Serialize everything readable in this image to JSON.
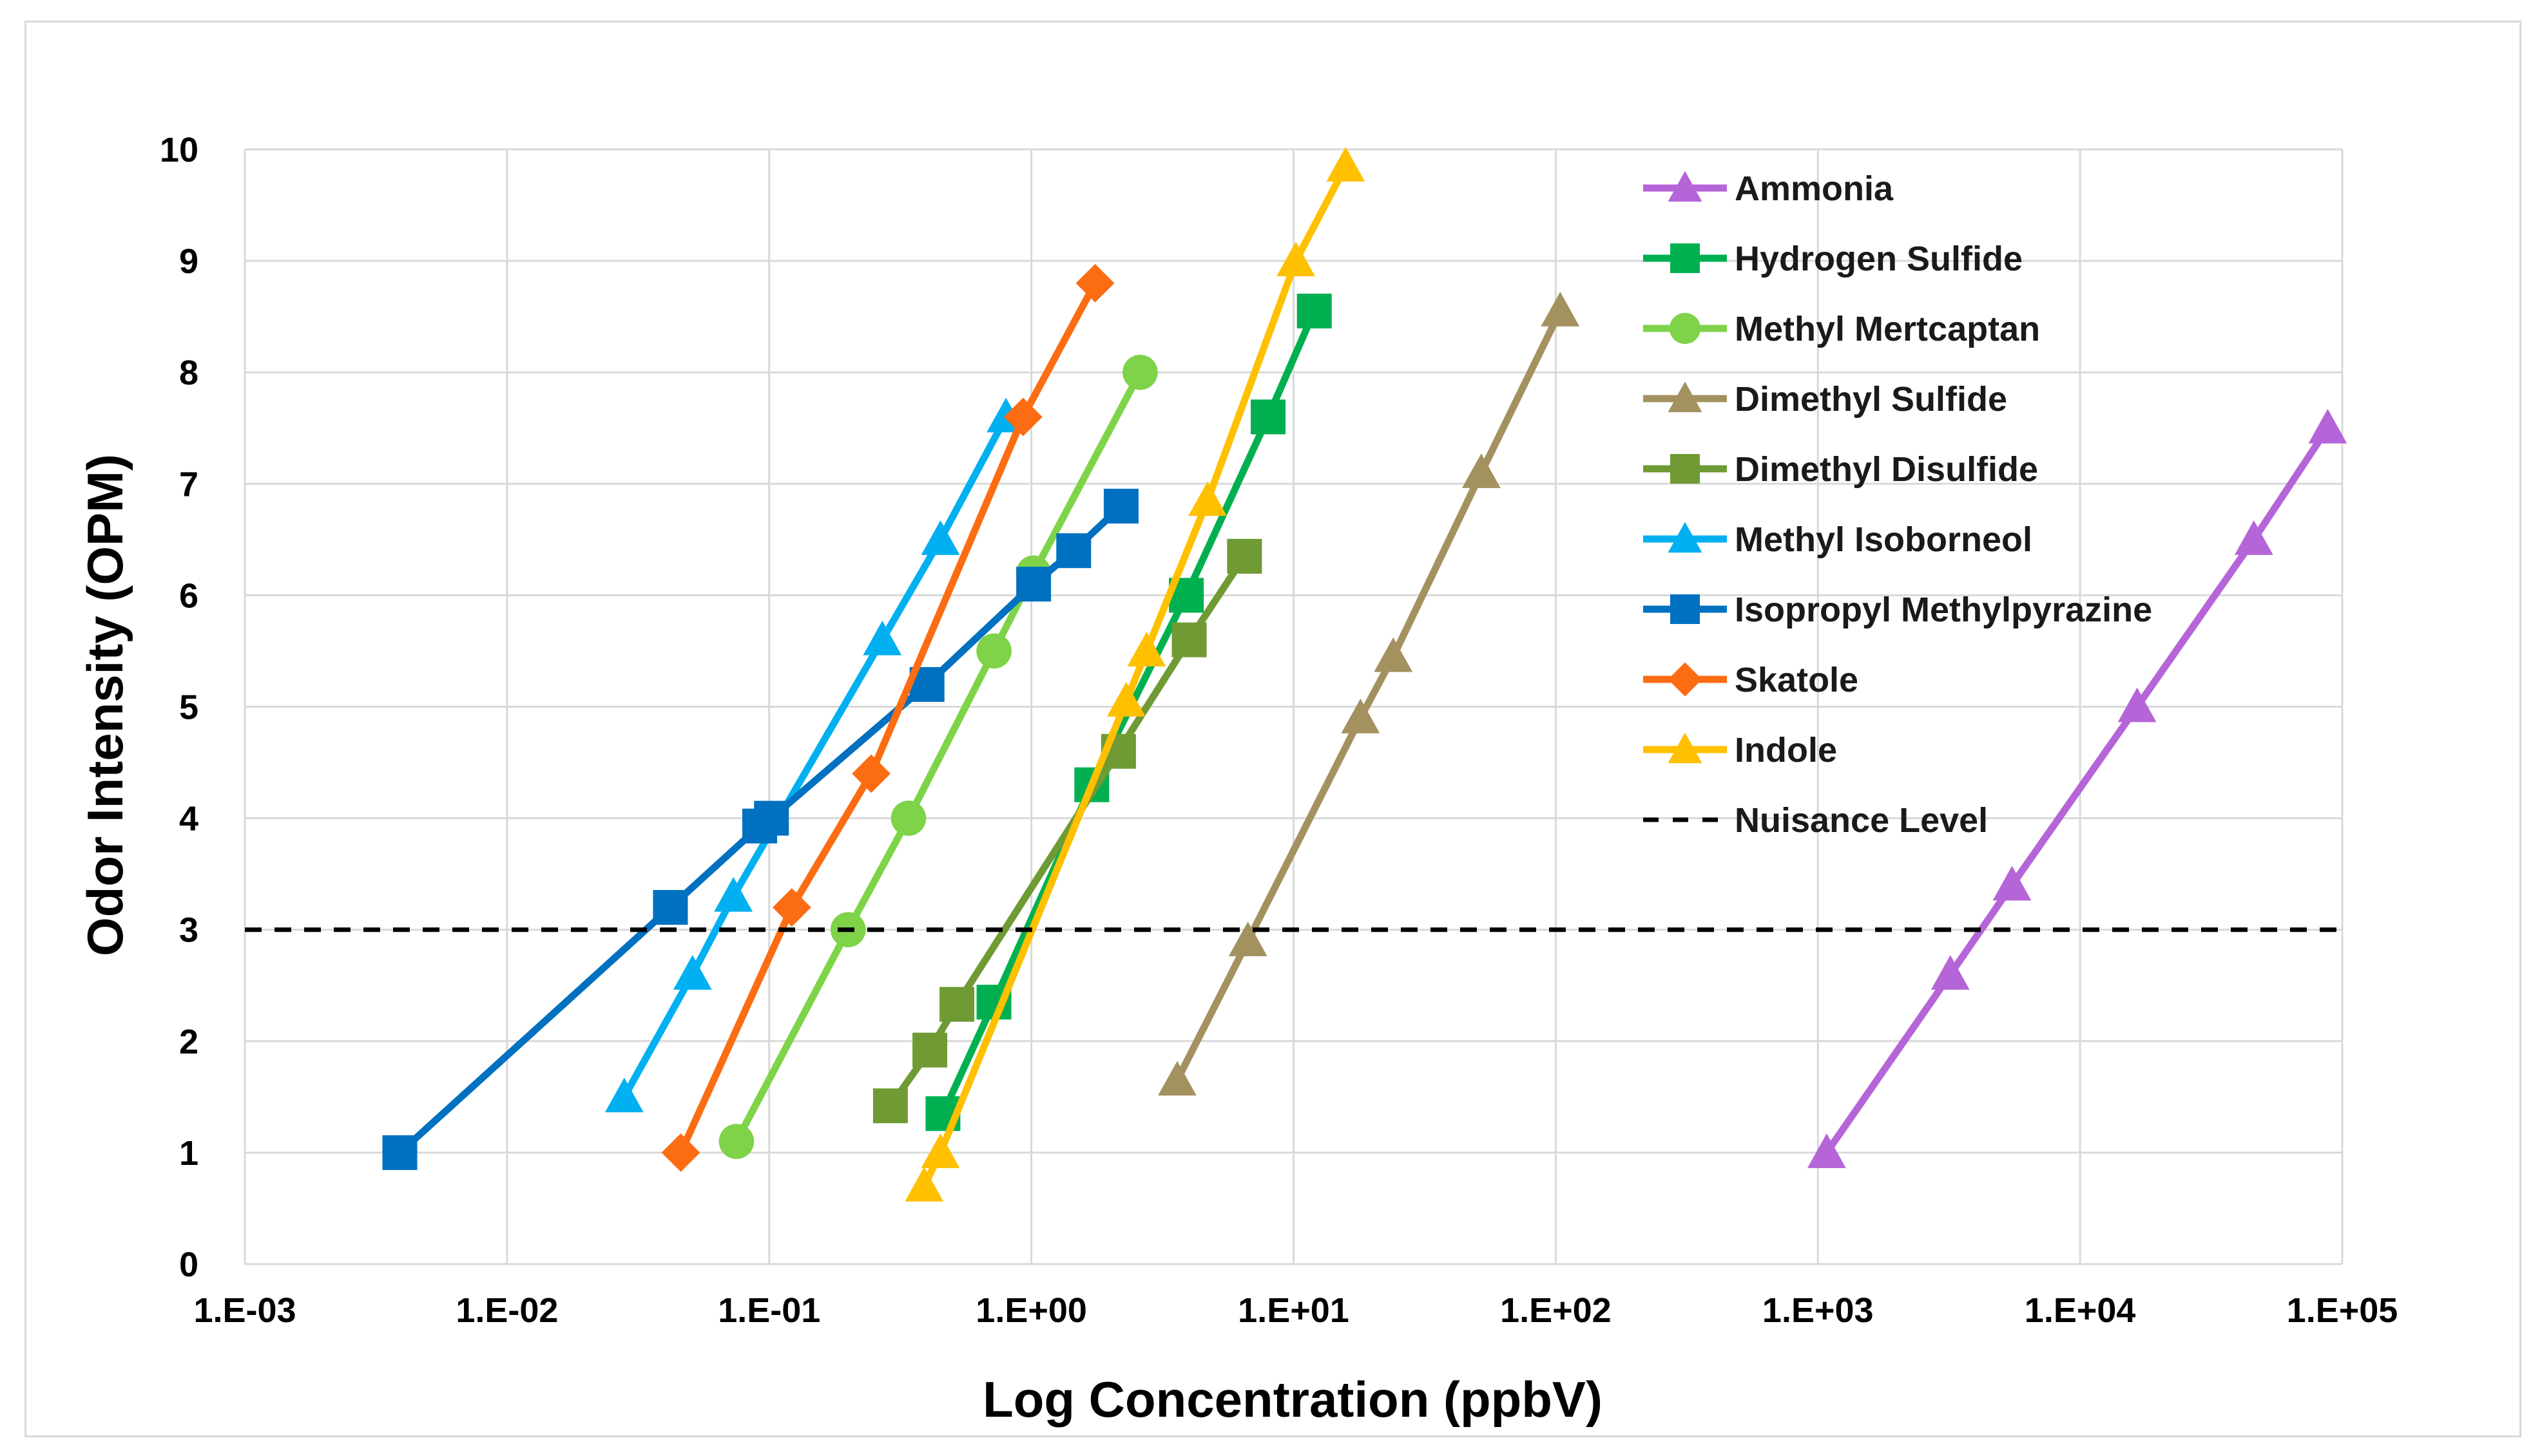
{
  "chart_data": {
    "type": "line",
    "xscale": "log10",
    "xlabel": "Log Concentration (ppbV)",
    "ylabel": "Odor Intensity (OPM)",
    "xlim": [
      0.001,
      100000
    ],
    "ylim": [
      0,
      10
    ],
    "grid": true,
    "legend_position": "top-right",
    "x_tick_values": [
      0.001,
      0.01,
      0.1,
      1,
      10,
      100,
      1000,
      10000,
      100000
    ],
    "x_tick_labels": [
      "1.E-03",
      "1.E-02",
      "1.E-01",
      "1.E+00",
      "1.E+01",
      "1.E+02",
      "1.E+03",
      "1.E+04",
      "1.E+05"
    ],
    "y_tick_values": [
      0,
      1,
      2,
      3,
      4,
      5,
      6,
      7,
      8,
      9,
      10
    ],
    "y_tick_labels": [
      "0",
      "1",
      "2",
      "3",
      "4",
      "5",
      "6",
      "7",
      "8",
      "9",
      "10"
    ],
    "series": [
      {
        "name": "Ammonia",
        "color": "#b565d8",
        "marker": "triangle",
        "x": [
          1080,
          3200,
          5500,
          16500,
          46000,
          88000
        ],
        "y": [
          1.0,
          2.6,
          3.4,
          5.0,
          6.5,
          7.5
        ]
      },
      {
        "name": "Hydrogen Sulfide",
        "color": "#00b050",
        "marker": "square",
        "x": [
          0.46,
          0.72,
          1.7,
          3.9,
          8.0,
          12.0
        ],
        "y": [
          1.35,
          2.35,
          4.3,
          6.0,
          7.6,
          8.55
        ]
      },
      {
        "name": "Methyl Mertcaptan",
        "color": "#7ed348",
        "marker": "circle",
        "x": [
          0.075,
          0.2,
          0.34,
          0.72,
          1.02,
          2.6
        ],
        "y": [
          1.1,
          3.0,
          4.0,
          5.5,
          6.2,
          8.0
        ]
      },
      {
        "name": "Dimethyl Sulfide",
        "color": "#a39160",
        "marker": "triangle",
        "x": [
          3.6,
          6.7,
          18,
          24,
          52,
          104
        ],
        "y": [
          1.65,
          2.9,
          4.9,
          5.45,
          7.1,
          8.55
        ]
      },
      {
        "name": "Dimethyl Disulfide",
        "color": "#6f9a34",
        "marker": "square",
        "x": [
          0.29,
          0.41,
          0.52,
          2.15,
          4.0,
          6.5
        ],
        "y": [
          1.42,
          1.92,
          2.33,
          4.6,
          5.6,
          6.35
        ]
      },
      {
        "name": "Methyl Isoborneol",
        "color": "#00b0f0",
        "marker": "triangle",
        "x": [
          0.028,
          0.051,
          0.073,
          0.27,
          0.45,
          0.8
        ],
        "y": [
          1.5,
          2.6,
          3.3,
          5.6,
          6.5,
          7.6
        ]
      },
      {
        "name": "Isopropyl Methylpyrazine",
        "color": "#0070c0",
        "marker": "square",
        "x": [
          0.0039,
          0.042,
          0.092,
          0.102,
          0.4,
          1.02,
          1.45,
          2.2
        ],
        "y": [
          1.0,
          3.2,
          3.93,
          4.0,
          5.2,
          6.1,
          6.4,
          6.8
        ]
      },
      {
        "name": "Skatole",
        "color": "#fc6c12",
        "marker": "diamond",
        "x": [
          0.046,
          0.122,
          0.245,
          0.93,
          1.75
        ],
        "y": [
          1.0,
          3.2,
          4.4,
          7.6,
          8.8
        ]
      },
      {
        "name": "Indole",
        "color": "#ffc000",
        "marker": "triangle",
        "x": [
          0.39,
          0.45,
          2.3,
          2.75,
          4.7,
          10.2,
          15.8
        ],
        "y": [
          0.7,
          1.0,
          5.05,
          5.5,
          6.85,
          9.0,
          9.85
        ]
      },
      {
        "name": "Nuisance Level",
        "color": "#000000",
        "marker": "none",
        "dashed": true,
        "x": [
          0.001,
          100000
        ],
        "y": [
          3.0,
          3.0
        ]
      }
    ]
  }
}
